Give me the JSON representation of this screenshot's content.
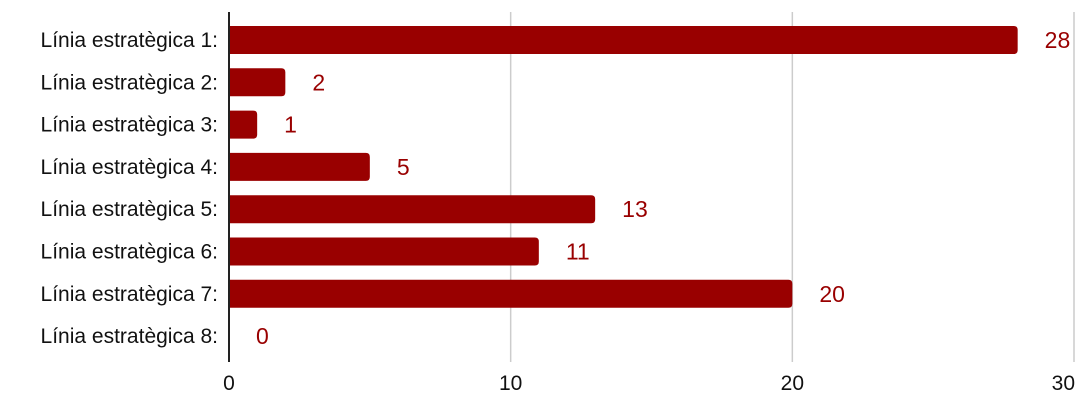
{
  "chart_data": {
    "type": "bar",
    "orientation": "horizontal",
    "categories": [
      "Línia estratègica 1:",
      "Línia estratègica 2:",
      "Línia estratègica 3:",
      "Línia estratègica 4:",
      "Línia estratègica 5:",
      "Línia estratègica 6:",
      "Línia estratègica 7:",
      "Línia estratègica 8:"
    ],
    "values": [
      28,
      2,
      1,
      5,
      13,
      11,
      20,
      0
    ],
    "value_labels": [
      "28",
      "2",
      "1",
      "5",
      "13",
      "11",
      "20",
      "0"
    ],
    "xlim": [
      0,
      30
    ],
    "x_ticks": [
      0,
      10,
      20,
      30
    ],
    "x_tick_labels": [
      "0",
      "10",
      "20",
      "30"
    ],
    "grid": "vertical",
    "bar_color": "#990000",
    "label_color": "#990000",
    "title": "",
    "xlabel": "",
    "ylabel": ""
  }
}
